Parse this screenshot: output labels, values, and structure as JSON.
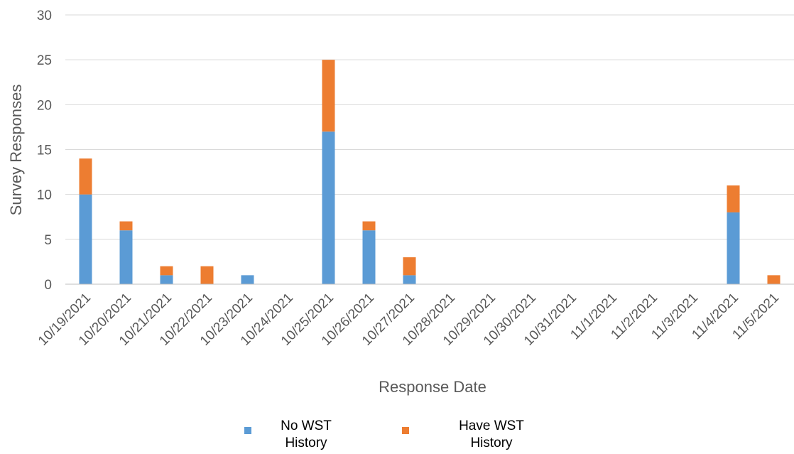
{
  "chart_data": {
    "type": "bar",
    "stacked": true,
    "xlabel": "Response Date",
    "ylabel": "Survey Responses",
    "ylim": [
      0,
      30
    ],
    "yticks": [
      0,
      5,
      10,
      15,
      20,
      25,
      30
    ],
    "grid": true,
    "legend_position": "bottom",
    "categories": [
      "10/19/2021",
      "10/20/2021",
      "10/21/2021",
      "10/22/2021",
      "10/23/2021",
      "10/24/2021",
      "10/25/2021",
      "10/26/2021",
      "10/27/2021",
      "10/28/2021",
      "10/29/2021",
      "10/30/2021",
      "10/31/2021",
      "11/1/2021",
      "11/2/2021",
      "11/3/2021",
      "11/4/2021",
      "11/5/2021"
    ],
    "series": [
      {
        "name_lines": [
          "No WST",
          "History"
        ],
        "color": "#5b9bd5",
        "values": [
          10,
          6,
          1,
          0,
          1,
          0,
          17,
          6,
          1,
          0,
          0,
          0,
          0,
          0,
          0,
          0,
          8,
          0
        ]
      },
      {
        "name_lines": [
          "Have WST",
          "History"
        ],
        "color": "#ed7d31",
        "values": [
          4,
          1,
          1,
          2,
          0,
          0,
          8,
          1,
          2,
          0,
          0,
          0,
          0,
          0,
          0,
          0,
          3,
          1
        ]
      }
    ]
  }
}
